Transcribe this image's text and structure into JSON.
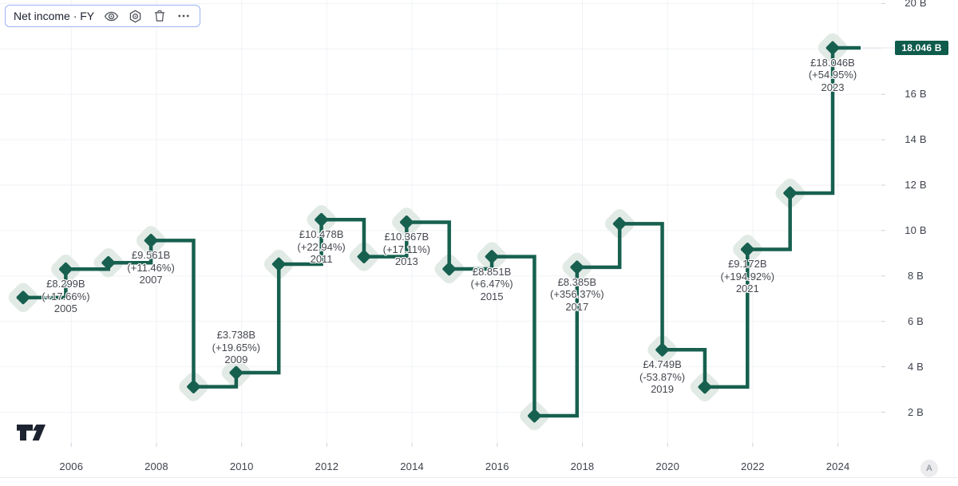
{
  "legend": {
    "title": "Net income · FY",
    "buttons": [
      "hide",
      "settings",
      "remove",
      "more"
    ]
  },
  "colors": {
    "line": "#17604f",
    "marker": "#17604f",
    "marker_halo": "#e2eae6",
    "badge_bg": "#0f5b4c",
    "badge_text": "#ffffff",
    "label_text": "#45484f",
    "axis_text": "#3e424c",
    "grid": "#f0f2f6",
    "tick": "#cfd3da",
    "price_line": "#e2e5e9",
    "legend_border": "#9db3f8"
  },
  "chart_data": {
    "type": "line",
    "line_style": "step-after with diamond markers",
    "title": "Net income · FY",
    "currency_symbol": "£",
    "units": "B",
    "x": [
      2004,
      2005,
      2006,
      2007,
      2008,
      2009,
      2010,
      2011,
      2012,
      2013,
      2014,
      2015,
      2016,
      2017,
      2018,
      2019,
      2020,
      2021,
      2022,
      2023
    ],
    "series": [
      {
        "name": "Net income (FY)",
        "values": [
          7.05,
          8.299,
          8.58,
          9.561,
          3.12,
          3.738,
          8.52,
          10.478,
          8.85,
          10.367,
          8.31,
          8.851,
          1.84,
          8.385,
          10.3,
          4.749,
          3.11,
          9.172,
          11.65,
          18.046
        ]
      }
    ],
    "labeled_points": [
      {
        "year": "2005",
        "value_text": "£8.299B",
        "change_text": "(+17.66%)",
        "value": 8.299,
        "placement": "below"
      },
      {
        "year": "2007",
        "value_text": "£9.561B",
        "change_text": "(+11.46%)",
        "value": 9.561,
        "placement": "below"
      },
      {
        "year": "2009",
        "value_text": "£3.738B",
        "change_text": "(+19.65%)",
        "value": 3.738,
        "placement": "above"
      },
      {
        "year": "2011",
        "value_text": "£10.478B",
        "change_text": "(+22.94%)",
        "value": 10.478,
        "placement": "below"
      },
      {
        "year": "2013",
        "value_text": "£10.367B",
        "change_text": "(+17.11%)",
        "value": 10.367,
        "placement": "below"
      },
      {
        "year": "2015",
        "value_text": "£8.851B",
        "change_text": "(+6.47%)",
        "value": 8.851,
        "placement": "below"
      },
      {
        "year": "2017",
        "value_text": "£8.385B",
        "change_text": "(+356.37%)",
        "value": 8.385,
        "placement": "below"
      },
      {
        "year": "2019",
        "value_text": "£4.749B",
        "change_text": "(-53.87%)",
        "value": 4.749,
        "placement": "below"
      },
      {
        "year": "2021",
        "value_text": "£9.172B",
        "change_text": "(+194.92%)",
        "value": 9.172,
        "placement": "below"
      },
      {
        "year": "2023",
        "value_text": "£18.046B",
        "change_text": "(+54.95%)",
        "value": 18.046,
        "placement": "below"
      }
    ],
    "xlabel": "",
    "ylabel": "",
    "ylim": [
      0,
      20
    ],
    "grid": true,
    "legend_position": "top-left",
    "xticks": [
      {
        "year": 2006,
        "label": "2006"
      },
      {
        "year": 2008,
        "label": "2008"
      },
      {
        "year": 2010,
        "label": "2010"
      },
      {
        "year": 2012,
        "label": "2012"
      },
      {
        "year": 2014,
        "label": "2014"
      },
      {
        "year": 2016,
        "label": "2016"
      },
      {
        "year": 2018,
        "label": "2018"
      },
      {
        "year": 2020,
        "label": "2020"
      },
      {
        "year": 2022,
        "label": "2022"
      },
      {
        "year": 2024,
        "label": "2024"
      }
    ],
    "yticks": [
      {
        "value": 20,
        "label": "20 B"
      },
      {
        "value": 16,
        "label": "16 B"
      },
      {
        "value": 14,
        "label": "14 B"
      },
      {
        "value": 12,
        "label": "12 B"
      },
      {
        "value": 10,
        "label": "10 B"
      },
      {
        "value": 8,
        "label": "8 B"
      },
      {
        "value": 6,
        "label": "6 B"
      },
      {
        "value": 4,
        "label": "4 B"
      },
      {
        "value": 2,
        "label": "2 B"
      }
    ],
    "last_price_badge": {
      "value": 18.046,
      "label": "18.046 B"
    }
  },
  "watermark": {
    "name": "TradingView"
  },
  "accessibility_badge": {
    "label": "A"
  }
}
